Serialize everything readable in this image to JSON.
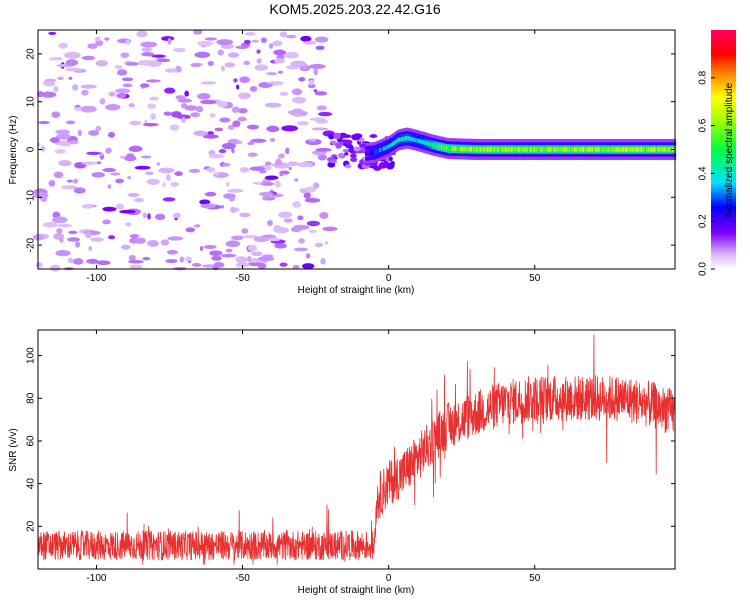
{
  "title": "KOM5.2025.203.22.42.G16",
  "chart_data": [
    {
      "type": "heatmap",
      "xlabel": "Height of straight line (km)",
      "ylabel": "Frequency (Hz)",
      "xlim": [
        -120,
        98
      ],
      "ylim": [
        -25,
        25
      ],
      "xticks": [
        -100,
        -50,
        0,
        50
      ],
      "yticks": [
        -20,
        -10,
        0,
        10,
        20
      ],
      "colorbar": {
        "label": "Normalized spectral amplitude",
        "range": [
          0,
          1
        ],
        "ticks": [
          "0.0",
          "0.2",
          "0.4",
          "0.6",
          "0.8"
        ]
      },
      "ridge": {
        "description_points_x": [
          -20,
          -10,
          -5,
          0,
          3,
          6,
          10,
          15,
          20,
          30,
          50,
          98
        ],
        "frequency_y": [
          -1.2,
          -1.0,
          -0.6,
          0.7,
          2.0,
          2.4,
          1.8,
          0.9,
          0.2,
          0.0,
          0.0,
          0.0
        ],
        "amplitude": [
          0.1,
          0.15,
          0.25,
          0.35,
          0.38,
          0.4,
          0.35,
          0.45,
          0.55,
          0.6,
          0.6,
          0.6
        ]
      },
      "noise_region_x": [
        -120,
        -20
      ]
    },
    {
      "type": "line",
      "xlabel": "Height of straight line (km)",
      "ylabel": "SNR (v/v)",
      "xlim": [
        -120,
        98
      ],
      "ylim": [
        0,
        112
      ],
      "xticks": [
        -100,
        -50,
        0,
        50
      ],
      "yticks": [
        20,
        40,
        60,
        80,
        100
      ],
      "color": "#e83030",
      "trend": {
        "x": [
          -120,
          -60,
          -5,
          -4,
          0,
          5,
          10,
          15,
          20,
          30,
          40,
          50,
          60,
          70,
          80,
          90,
          98
        ],
        "y": [
          11,
          11,
          11,
          33,
          40,
          45,
          52,
          60,
          67,
          73,
          78,
          80,
          80,
          80,
          80,
          77,
          73
        ]
      },
      "peaks": {
        "min": 2,
        "max": 110
      }
    }
  ]
}
